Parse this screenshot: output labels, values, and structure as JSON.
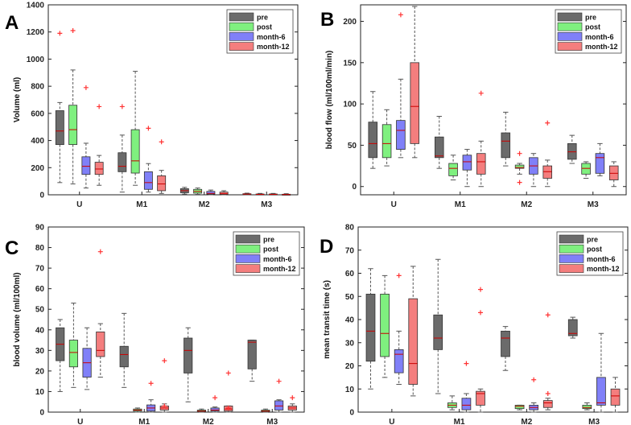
{
  "figure": {
    "legend_labels": [
      "pre",
      "post",
      "month-6",
      "month-12"
    ],
    "colors": {
      "pre": "#6b6b6b",
      "post": "#7ff07f",
      "month-6": "#8080f8",
      "month-12": "#f47e7e",
      "outlier": "#ff3333",
      "median": "#cc0000",
      "whisker": "#555555"
    }
  },
  "chart_data": [
    {
      "type": "box",
      "panel_label": "A",
      "ylabel": "Volume (ml)",
      "xlabel": "",
      "categories": [
        "U",
        "M1",
        "M2",
        "M3"
      ],
      "ylim": [
        0,
        1400
      ],
      "yticks": [
        0,
        200,
        400,
        600,
        800,
        1000,
        1200,
        1400
      ],
      "legend": [
        "pre",
        "post",
        "month-6",
        "month-12"
      ],
      "legend_position": "top-right",
      "series": [
        {
          "name": "pre",
          "boxes": [
            {
              "min": 90,
              "q1": 370,
              "median": 470,
              "q3": 620,
              "max": 680,
              "outliers": [
                1190
              ]
            },
            {
              "min": 20,
              "q1": 170,
              "median": 210,
              "q3": 310,
              "max": 440,
              "outliers": [
                650
              ]
            },
            {
              "min": 5,
              "q1": 15,
              "median": 30,
              "q3": 45,
              "max": 55,
              "outliers": []
            },
            {
              "min": 0,
              "q1": 2,
              "median": 5,
              "q3": 8,
              "max": 12,
              "outliers": []
            }
          ]
        },
        {
          "name": "post",
          "boxes": [
            {
              "min": 80,
              "q1": 370,
              "median": 480,
              "q3": 660,
              "max": 920,
              "outliers": [
                1210
              ]
            },
            {
              "min": 70,
              "q1": 160,
              "median": 250,
              "q3": 480,
              "max": 910,
              "outliers": []
            },
            {
              "min": 3,
              "q1": 12,
              "median": 25,
              "q3": 40,
              "max": 50,
              "outliers": []
            },
            {
              "min": 0,
              "q1": 1,
              "median": 3,
              "q3": 6,
              "max": 10,
              "outliers": []
            }
          ]
        },
        {
          "name": "month-6",
          "boxes": [
            {
              "min": 50,
              "q1": 150,
              "median": 210,
              "q3": 280,
              "max": 380,
              "outliers": [
                790
              ]
            },
            {
              "min": 20,
              "q1": 40,
              "median": 90,
              "q3": 170,
              "max": 230,
              "outliers": [
                490
              ]
            },
            {
              "min": 0,
              "q1": 5,
              "median": 10,
              "q3": 25,
              "max": 35,
              "outliers": []
            },
            {
              "min": 0,
              "q1": 1,
              "median": 3,
              "q3": 6,
              "max": 10,
              "outliers": []
            }
          ]
        },
        {
          "name": "month-12",
          "boxes": [
            {
              "min": 70,
              "q1": 150,
              "median": 190,
              "q3": 240,
              "max": 290,
              "outliers": [
                650
              ]
            },
            {
              "min": 10,
              "q1": 30,
              "median": 80,
              "q3": 140,
              "max": 180,
              "outliers": [
                390
              ]
            },
            {
              "min": 0,
              "q1": 3,
              "median": 8,
              "q3": 20,
              "max": 30,
              "outliers": []
            },
            {
              "min": 0,
              "q1": 1,
              "median": 2,
              "q3": 4,
              "max": 8,
              "outliers": []
            }
          ]
        }
      ]
    },
    {
      "type": "box",
      "panel_label": "B",
      "ylabel": "blood flow (ml/100ml/min)",
      "xlabel": "",
      "categories": [
        "U",
        "M1",
        "M2",
        "M3"
      ],
      "ylim": [
        -10,
        220
      ],
      "yticks": [
        0,
        50,
        100,
        150,
        200
      ],
      "legend": [
        "pre",
        "post",
        "month-6",
        "month-12"
      ],
      "legend_position": "top-right",
      "series": [
        {
          "name": "pre",
          "boxes": [
            {
              "min": 22,
              "q1": 35,
              "median": 52,
              "q3": 78,
              "max": 115,
              "outliers": []
            },
            {
              "min": 22,
              "q1": 35,
              "median": 37,
              "q3": 60,
              "max": 85,
              "outliers": []
            },
            {
              "min": 25,
              "q1": 35,
              "median": 55,
              "q3": 65,
              "max": 90,
              "outliers": []
            },
            {
              "min": 28,
              "q1": 33,
              "median": 42,
              "q3": 52,
              "max": 62,
              "outliers": []
            }
          ]
        },
        {
          "name": "post",
          "boxes": [
            {
              "min": 25,
              "q1": 35,
              "median": 52,
              "q3": 75,
              "max": 93,
              "outliers": []
            },
            {
              "min": 8,
              "q1": 13,
              "median": 22,
              "q3": 28,
              "max": 38,
              "outliers": []
            },
            {
              "min": 15,
              "q1": 22,
              "median": 23,
              "q3": 26,
              "max": 28,
              "outliers": [
                40,
                5
              ]
            },
            {
              "min": 10,
              "q1": 15,
              "median": 22,
              "q3": 28,
              "max": 30,
              "outliers": []
            }
          ]
        },
        {
          "name": "month-6",
          "boxes": [
            {
              "min": 35,
              "q1": 45,
              "median": 68,
              "q3": 80,
              "max": 130,
              "outliers": [
                208
              ]
            },
            {
              "min": 0,
              "q1": 20,
              "median": 30,
              "q3": 38,
              "max": 45,
              "outliers": []
            },
            {
              "min": 0,
              "q1": 15,
              "median": 25,
              "q3": 35,
              "max": 40,
              "outliers": []
            },
            {
              "min": 13,
              "q1": 16,
              "median": 35,
              "q3": 40,
              "max": 52,
              "outliers": []
            }
          ]
        },
        {
          "name": "month-12",
          "boxes": [
            {
              "min": 35,
              "q1": 52,
              "median": 97,
              "q3": 150,
              "max": 218,
              "outliers": []
            },
            {
              "min": 0,
              "q1": 15,
              "median": 30,
              "q3": 40,
              "max": 55,
              "outliers": [
                113
              ]
            },
            {
              "min": 0,
              "q1": 10,
              "median": 18,
              "q3": 25,
              "max": 32,
              "outliers": [
                77
              ]
            },
            {
              "min": 0,
              "q1": 8,
              "median": 16,
              "q3": 25,
              "max": 30,
              "outliers": []
            }
          ]
        }
      ]
    },
    {
      "type": "box",
      "panel_label": "C",
      "ylabel": "blood volume (ml/100ml)",
      "xlabel": "",
      "categories": [
        "U",
        "M1",
        "M2",
        "M3"
      ],
      "ylim": [
        0,
        90
      ],
      "yticks": [
        0,
        10,
        20,
        30,
        40,
        50,
        60,
        70,
        80,
        90
      ],
      "legend": [
        "pre",
        "post",
        "month-6",
        "month-12"
      ],
      "legend_position": "top-right",
      "series": [
        {
          "name": "pre",
          "boxes": [
            {
              "min": 10,
              "q1": 25,
              "median": 33,
              "q3": 41,
              "max": 45,
              "outliers": []
            },
            {
              "min": 12,
              "q1": 22,
              "median": 28,
              "q3": 32,
              "max": 48,
              "outliers": []
            },
            {
              "min": 5,
              "q1": 19,
              "median": 30,
              "q3": 36,
              "max": 41,
              "outliers": []
            },
            {
              "min": 15,
              "q1": 21,
              "median": 34,
              "q3": 35,
              "max": 35,
              "outliers": []
            }
          ]
        },
        {
          "name": "post",
          "boxes": [
            {
              "min": 12,
              "q1": 22,
              "median": 29,
              "q3": 35,
              "max": 53,
              "outliers": []
            },
            {
              "min": 0,
              "q1": 0.5,
              "median": 1,
              "q3": 1.5,
              "max": 2,
              "outliers": []
            },
            {
              "min": 0,
              "q1": 0.3,
              "median": 0.5,
              "q3": 1,
              "max": 1.5,
              "outliers": []
            },
            {
              "min": 0,
              "q1": 0.3,
              "median": 0.5,
              "q3": 1,
              "max": 1.5,
              "outliers": []
            }
          ]
        },
        {
          "name": "month-6",
          "boxes": [
            {
              "min": 11,
              "q1": 17,
              "median": 24,
              "q3": 31,
              "max": 41,
              "outliers": []
            },
            {
              "min": 0,
              "q1": 0.5,
              "median": 2,
              "q3": 3.5,
              "max": 6,
              "outliers": [
                14
              ]
            },
            {
              "min": 0,
              "q1": 0.5,
              "median": 1,
              "q3": 2,
              "max": 2.5,
              "outliers": [
                7
              ]
            },
            {
              "min": 0,
              "q1": 1,
              "median": 3,
              "q3": 5.5,
              "max": 6,
              "outliers": [
                15
              ]
            }
          ]
        },
        {
          "name": "month-12",
          "boxes": [
            {
              "min": 17,
              "q1": 27,
              "median": 30,
              "q3": 39,
              "max": 43,
              "outliers": [
                78
              ]
            },
            {
              "min": 0,
              "q1": 1,
              "median": 2,
              "q3": 3,
              "max": 4,
              "outliers": [
                25,
                3
              ]
            },
            {
              "min": 0,
              "q1": 0.5,
              "median": 1.5,
              "q3": 3,
              "max": 3,
              "outliers": [
                19,
                2
              ]
            },
            {
              "min": 0,
              "q1": 1,
              "median": 2,
              "q3": 3,
              "max": 4,
              "outliers": [
                7
              ]
            }
          ]
        }
      ]
    },
    {
      "type": "box",
      "panel_label": "D",
      "ylabel": "mean transit time (s)",
      "xlabel": "",
      "categories": [
        "U",
        "M1",
        "M2",
        "M3"
      ],
      "ylim": [
        0,
        80
      ],
      "yticks": [
        0,
        10,
        20,
        30,
        40,
        50,
        60,
        70,
        80
      ],
      "legend": [
        "pre",
        "post",
        "month-6",
        "month-12"
      ],
      "legend_position": "top-right",
      "series": [
        {
          "name": "pre",
          "boxes": [
            {
              "min": 10,
              "q1": 22,
              "median": 35,
              "q3": 51,
              "max": 62,
              "outliers": []
            },
            {
              "min": 8,
              "q1": 27,
              "median": 32,
              "q3": 42,
              "max": 66,
              "outliers": []
            },
            {
              "min": 18,
              "q1": 24,
              "median": 32,
              "q3": 35,
              "max": 37,
              "outliers": []
            },
            {
              "min": 32,
              "q1": 33,
              "median": 34,
              "q3": 40,
              "max": 41,
              "outliers": []
            }
          ]
        },
        {
          "name": "post",
          "boxes": [
            {
              "min": 15,
              "q1": 24,
              "median": 34,
              "q3": 51,
              "max": 59,
              "outliers": []
            },
            {
              "min": 1,
              "q1": 2,
              "median": 3,
              "q3": 4,
              "max": 7,
              "outliers": []
            },
            {
              "min": 1,
              "q1": 1.5,
              "median": 2.5,
              "q3": 3,
              "max": 3,
              "outliers": []
            },
            {
              "min": 1,
              "q1": 1.5,
              "median": 2,
              "q3": 3,
              "max": 4,
              "outliers": []
            }
          ]
        },
        {
          "name": "month-6",
          "boxes": [
            {
              "min": 12,
              "q1": 17,
              "median": 25,
              "q3": 27,
              "max": 35,
              "outliers": [
                59
              ]
            },
            {
              "min": 0,
              "q1": 1,
              "median": 3,
              "q3": 6,
              "max": 8,
              "outliers": [
                21
              ]
            },
            {
              "min": 0,
              "q1": 1,
              "median": 2,
              "q3": 3,
              "max": 4,
              "outliers": [
                14
              ]
            },
            {
              "min": 0,
              "q1": 3,
              "median": 4,
              "q3": 15,
              "max": 34,
              "outliers": []
            }
          ]
        },
        {
          "name": "month-12",
          "boxes": [
            {
              "min": 7,
              "q1": 12,
              "median": 21,
              "q3": 49,
              "max": 63,
              "outliers": []
            },
            {
              "min": 0,
              "q1": 3,
              "median": 8,
              "q3": 9,
              "max": 10,
              "outliers": [
                53,
                43
              ]
            },
            {
              "min": 1,
              "q1": 2,
              "median": 4,
              "q3": 5,
              "max": 6,
              "outliers": [
                42,
                8
              ]
            },
            {
              "min": 0,
              "q1": 3,
              "median": 7,
              "q3": 10,
              "max": 15,
              "outliers": []
            }
          ]
        }
      ]
    }
  ]
}
